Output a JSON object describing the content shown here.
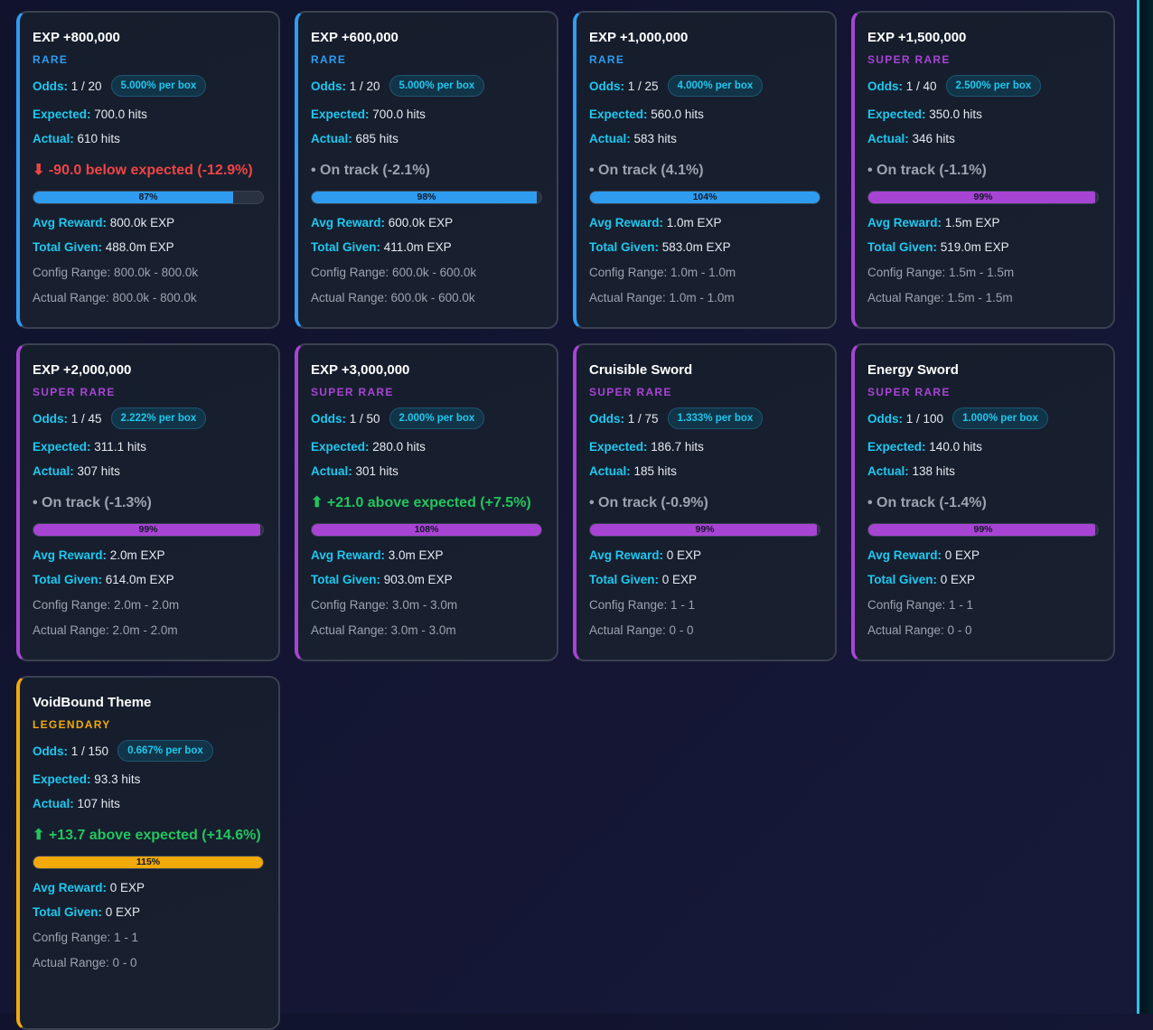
{
  "colors": {
    "rare": "#2f9cf0",
    "super_rare": "#a844d4",
    "legendary": "#f2a90a",
    "label": "#1ec8f0",
    "down": "#ef4444",
    "up": "#22c55e",
    "on_track": "#9ca3af"
  },
  "labels": {
    "odds": "Odds:",
    "expected": "Expected:",
    "actual": "Actual:",
    "avg_reward": "Avg Reward:",
    "total_given": "Total Given:"
  },
  "cards": [
    {
      "title": "EXP +800,000",
      "rarity": "RARE",
      "tier": "rare",
      "odds": "1 / 20",
      "per_box": "5.000% per box",
      "expected": "700.0 hits",
      "actual": "610 hits",
      "status": "⬇ -90.0 below expected (-12.9%)",
      "status_kind": "down",
      "progress": 87,
      "progress_label": "87%",
      "avg_reward": "800.0k EXP",
      "total_given": "488.0m EXP",
      "config_range": "Config Range: 800.0k - 800.0k",
      "actual_range": "Actual Range: 800.0k - 800.0k"
    },
    {
      "title": "EXP +600,000",
      "rarity": "RARE",
      "tier": "rare",
      "odds": "1 / 20",
      "per_box": "5.000% per box",
      "expected": "700.0 hits",
      "actual": "685 hits",
      "status": "• On track (-2.1%)",
      "status_kind": "ok",
      "progress": 98,
      "progress_label": "98%",
      "avg_reward": "600.0k EXP",
      "total_given": "411.0m EXP",
      "config_range": "Config Range: 600.0k - 600.0k",
      "actual_range": "Actual Range: 600.0k - 600.0k"
    },
    {
      "title": "EXP +1,000,000",
      "rarity": "RARE",
      "tier": "rare",
      "odds": "1 / 25",
      "per_box": "4.000% per box",
      "expected": "560.0 hits",
      "actual": "583 hits",
      "status": "• On track (4.1%)",
      "status_kind": "ok",
      "progress": 104,
      "progress_label": "104%",
      "avg_reward": "1.0m EXP",
      "total_given": "583.0m EXP",
      "config_range": "Config Range: 1.0m - 1.0m",
      "actual_range": "Actual Range: 1.0m - 1.0m"
    },
    {
      "title": "EXP +1,500,000",
      "rarity": "SUPER RARE",
      "tier": "super_rare",
      "odds": "1 / 40",
      "per_box": "2.500% per box",
      "expected": "350.0 hits",
      "actual": "346 hits",
      "status": "• On track (-1.1%)",
      "status_kind": "ok",
      "progress": 99,
      "progress_label": "99%",
      "avg_reward": "1.5m EXP",
      "total_given": "519.0m EXP",
      "config_range": "Config Range: 1.5m - 1.5m",
      "actual_range": "Actual Range: 1.5m - 1.5m"
    },
    {
      "title": "EXP +2,000,000",
      "rarity": "SUPER RARE",
      "tier": "super_rare",
      "odds": "1 / 45",
      "per_box": "2.222% per box",
      "expected": "311.1 hits",
      "actual": "307 hits",
      "status": "• On track (-1.3%)",
      "status_kind": "ok",
      "progress": 99,
      "progress_label": "99%",
      "avg_reward": "2.0m EXP",
      "total_given": "614.0m EXP",
      "config_range": "Config Range: 2.0m - 2.0m",
      "actual_range": "Actual Range: 2.0m - 2.0m"
    },
    {
      "title": "EXP +3,000,000",
      "rarity": "SUPER RARE",
      "tier": "super_rare",
      "odds": "1 / 50",
      "per_box": "2.000% per box",
      "expected": "280.0 hits",
      "actual": "301 hits",
      "status": "⬆ +21.0 above expected (+7.5%)",
      "status_kind": "up",
      "progress": 108,
      "progress_label": "108%",
      "avg_reward": "3.0m EXP",
      "total_given": "903.0m EXP",
      "config_range": "Config Range: 3.0m - 3.0m",
      "actual_range": "Actual Range: 3.0m - 3.0m"
    },
    {
      "title": "Cruisible Sword",
      "rarity": "SUPER RARE",
      "tier": "super_rare",
      "odds": "1 / 75",
      "per_box": "1.333% per box",
      "expected": "186.7 hits",
      "actual": "185 hits",
      "status": "• On track (-0.9%)",
      "status_kind": "ok",
      "progress": 99,
      "progress_label": "99%",
      "avg_reward": "0 EXP",
      "total_given": "0 EXP",
      "config_range": "Config Range: 1 - 1",
      "actual_range": "Actual Range: 0 - 0"
    },
    {
      "title": "Energy Sword",
      "rarity": "SUPER RARE",
      "tier": "super_rare",
      "odds": "1 / 100",
      "per_box": "1.000% per box",
      "expected": "140.0 hits",
      "actual": "138 hits",
      "status": "• On track (-1.4%)",
      "status_kind": "ok",
      "progress": 99,
      "progress_label": "99%",
      "avg_reward": "0 EXP",
      "total_given": "0 EXP",
      "config_range": "Config Range: 1 - 1",
      "actual_range": "Actual Range: 0 - 0"
    },
    {
      "title": "VoidBound Theme",
      "rarity": "LEGENDARY",
      "tier": "legendary",
      "odds": "1 / 150",
      "per_box": "0.667% per box",
      "expected": "93.3 hits",
      "actual": "107 hits",
      "status": "⬆ +13.7 above expected (+14.6%)",
      "status_kind": "up",
      "progress": 115,
      "progress_label": "115%",
      "avg_reward": "0 EXP",
      "total_given": "0 EXP",
      "config_range": "Config Range: 1 - 1",
      "actual_range": "Actual Range: 0 - 0"
    }
  ]
}
